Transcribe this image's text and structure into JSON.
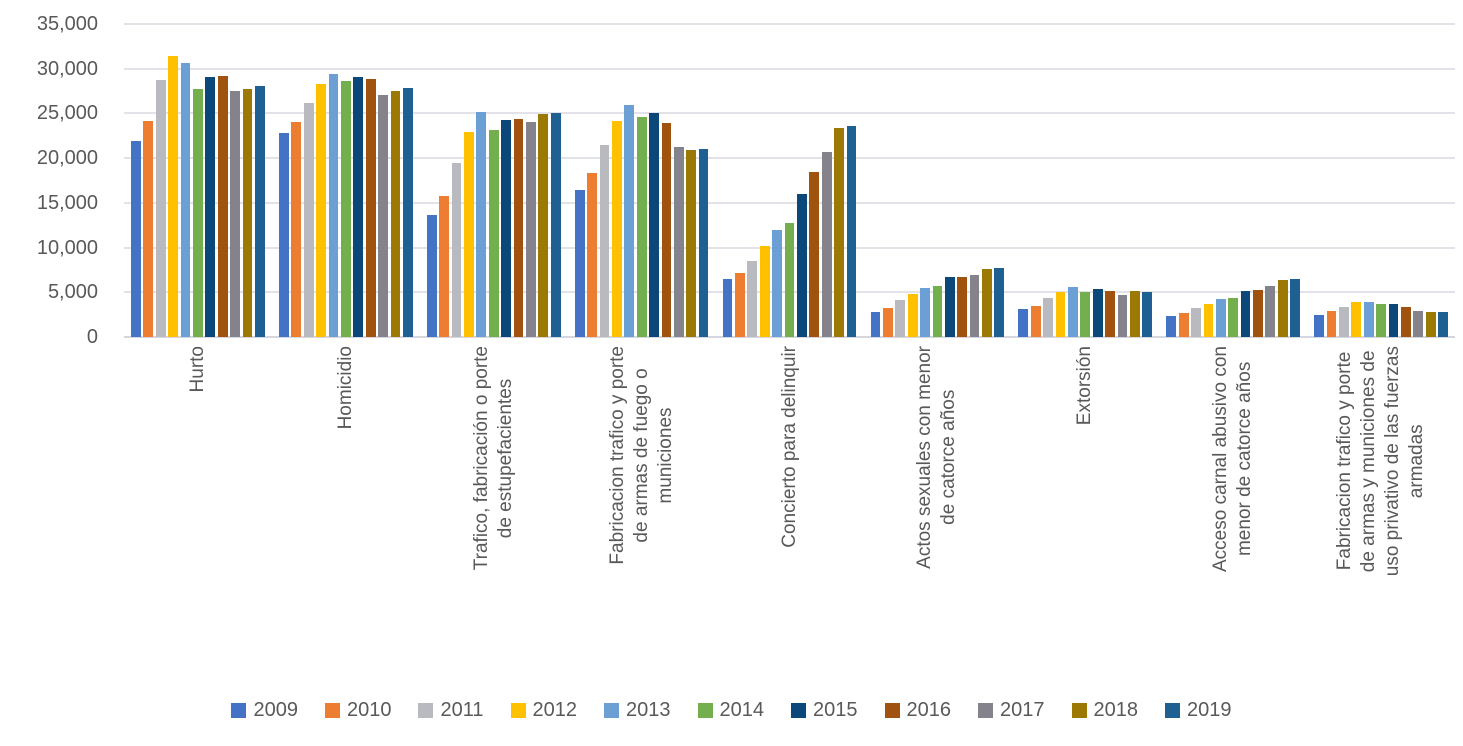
{
  "chart_data": {
    "type": "bar",
    "title": "",
    "xlabel": "",
    "ylabel": "",
    "ylim": [
      0,
      35000
    ],
    "ytick_step": 5000,
    "ytick_labels": [
      "0",
      "5,000",
      "10,000",
      "15,000",
      "20,000",
      "25,000",
      "30,000",
      "35,000"
    ],
    "grid": true,
    "legend_position": "bottom",
    "categories": [
      "Hurto",
      "Homicidio",
      "Trafico, fabricación o porte\nde estupefacientes",
      "Fabricacion trafico y porte\nde armas de fuego o\nmuniciones",
      "Concierto para delinquir",
      "Actos sexuales con menor\nde catorce años",
      "Extorsión",
      "Acceso carnal abusivo con\nmenor de catorce años",
      "Fabricacion  trafico y porte\nde armas y municiones de\nuso privativo de las fuerzas\narmadas"
    ],
    "series": [
      {
        "name": "2009",
        "color": "#4472C4",
        "values": [
          21900,
          22800,
          13600,
          16400,
          6500,
          2800,
          3100,
          2300,
          2500
        ]
      },
      {
        "name": "2010",
        "color": "#ED7D31",
        "values": [
          24200,
          24100,
          15800,
          18300,
          7200,
          3300,
          3500,
          2700,
          2900
        ]
      },
      {
        "name": "2011",
        "color": "#B9B9C0",
        "values": [
          28700,
          26200,
          19500,
          21500,
          8500,
          4100,
          4400,
          3200,
          3400
        ]
      },
      {
        "name": "2012",
        "color": "#FFC000",
        "values": [
          31400,
          28300,
          22900,
          24200,
          10200,
          4800,
          5000,
          3700,
          3900
        ]
      },
      {
        "name": "2013",
        "color": "#6C9FD4",
        "values": [
          30600,
          29400,
          25200,
          25900,
          12000,
          5500,
          5600,
          4200,
          3900
        ]
      },
      {
        "name": "2014",
        "color": "#74AF4E",
        "values": [
          27700,
          28600,
          23100,
          24600,
          12700,
          5700,
          5000,
          4400,
          3700
        ]
      },
      {
        "name": "2015",
        "color": "#0B4778",
        "values": [
          29100,
          29100,
          24300,
          25100,
          16000,
          6700,
          5400,
          5200,
          3700
        ]
      },
      {
        "name": "2016",
        "color": "#A0520F",
        "values": [
          29200,
          28800,
          24400,
          23900,
          18500,
          6700,
          5100,
          5300,
          3400
        ]
      },
      {
        "name": "2017",
        "color": "#84828A",
        "values": [
          27500,
          27100,
          24100,
          21200,
          20700,
          6900,
          4700,
          5700,
          2900
        ]
      },
      {
        "name": "2018",
        "color": "#9C7805",
        "values": [
          27700,
          27500,
          24900,
          20900,
          23400,
          7600,
          5100,
          6400,
          2800
        ]
      },
      {
        "name": "2019",
        "color": "#1F6093",
        "values": [
          28100,
          27800,
          25000,
          21000,
          23600,
          7700,
          5000,
          6500,
          2800
        ]
      }
    ]
  }
}
